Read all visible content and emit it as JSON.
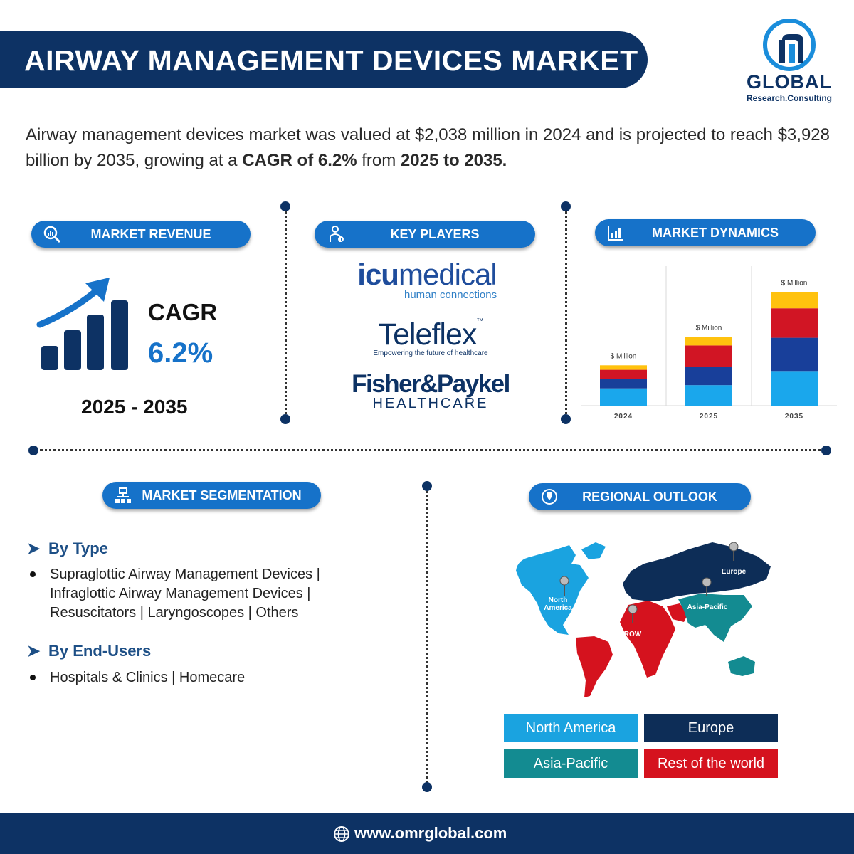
{
  "header": {
    "title": "AIRWAY MANAGEMENT DEVICES MARKET"
  },
  "logo": {
    "name": "GLOBAL",
    "sub": "Research.Consulting"
  },
  "intro": {
    "part1": "Airway management devices market was valued at $2,038 million in 2024 and is projected to reach $3,928 billion by 2035, growing at a ",
    "bold1": "CAGR of 6.2%",
    "part2": " from ",
    "bold2": "2025 to 2035."
  },
  "revenue": {
    "pill_label": "MARKET REVENUE",
    "cagr_label": "CAGR",
    "cagr_value": "6.2%",
    "period": "2025 - 2035"
  },
  "players": {
    "pill_label": "KEY PLAYERS",
    "icu": {
      "main_a": "icu",
      "main_b": "medical",
      "tagline": "human connections"
    },
    "teleflex": {
      "name": "Teleflex",
      "tm": "™",
      "tagline": "Empowering the future of healthcare"
    },
    "fisher": {
      "line1": "Fisher&Paykel",
      "line2": "HEALTHCARE"
    }
  },
  "dynamics": {
    "pill_label": "MARKET DYNAMICS"
  },
  "chart_data": {
    "type": "bar",
    "stacked": true,
    "categories": [
      "2024",
      "2025",
      "2035"
    ],
    "unit_label": "$ Million",
    "colors": [
      "#1aa7ec",
      "#183f9a",
      "#d11524",
      "#ffc20e"
    ],
    "series": [
      {
        "values": [
          27,
          32,
          53
        ]
      },
      {
        "values": [
          15,
          29,
          53
        ]
      },
      {
        "values": [
          14,
          33,
          46
        ]
      },
      {
        "values": [
          7,
          13,
          25
        ]
      }
    ],
    "ylim": [
      0,
      200
    ]
  },
  "segmentation": {
    "pill_label": "MARKET SEGMENTATION",
    "by_type": {
      "heading": "By Type",
      "lines": [
        "Supraglottic Airway Management Devices |",
        "Infraglottic Airway Management Devices |",
        "Resuscitators | Laryngoscopes | Others"
      ]
    },
    "by_end_users": {
      "heading": "By End-Users",
      "lines": [
        "Hospitals & Clinics | Homecare"
      ]
    }
  },
  "regional": {
    "pill_label": "REGIONAL OUTLOOK",
    "map_labels": {
      "north_america": "North America",
      "europe": "Europe",
      "asia_pacific": "Asia-Pacific",
      "row": "ROW"
    },
    "legend": [
      {
        "label": "North America",
        "color": "#1aa3e0"
      },
      {
        "label": "Europe",
        "color": "#0d2d57"
      },
      {
        "label": "Asia-Pacific",
        "color": "#138b91"
      },
      {
        "label": "Rest of the world",
        "color": "#d5121e"
      }
    ]
  },
  "footer": {
    "url": "www.omrglobal.com"
  }
}
